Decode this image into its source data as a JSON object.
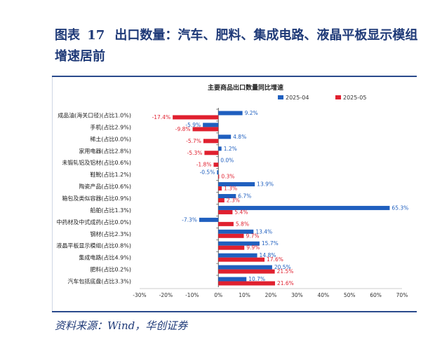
{
  "figure": {
    "label": "图表",
    "number": "17",
    "title": "出口数量：汽车、肥料、集成电路、液晶平板显示模组增速居前",
    "source": "资料来源：Wind，华创证券"
  },
  "colors": {
    "series_a": "#1f5fbf",
    "series_b": "#e0202f"
  },
  "chart_data": {
    "type": "bar",
    "orientation": "horizontal",
    "title": "主要商品出口数量同比增速",
    "categories": [
      "成品油(海关口径)(占比1.0%)",
      "手机(占比2.9%)",
      "稀土(占比0.0%)",
      "家用电器(占比2.8%)",
      "未锻轧铝及铝材(占比0.6%)",
      "鞋靴(占比1.2%)",
      "陶瓷产品(占比0.6%)",
      "箱包及类似容器(占比0.9%)",
      "船舶(占比1.3%)",
      "中药材及中式成药(占比0.0%)",
      "钢材(占比2.3%)",
      "液晶平板显示模组(占比0.8%)",
      "集成电路(占比4.9%)",
      "肥料(占比0.2%)",
      "汽车包括底盘(占比3.3%)"
    ],
    "series": [
      {
        "name": "2025-04",
        "values": [
          9.2,
          -5.9,
          4.8,
          1.2,
          0.0,
          -0.5,
          13.9,
          6.7,
          65.3,
          -7.3,
          13.4,
          15.7,
          14.8,
          20.5,
          10.7
        ]
      },
      {
        "name": "2025-05",
        "values": [
          -17.4,
          -9.8,
          -5.7,
          -5.3,
          -1.8,
          0.3,
          1.3,
          2.3,
          5.4,
          5.8,
          9.7,
          9.9,
          17.6,
          21.5,
          21.6
        ]
      }
    ],
    "xlim": [
      -30,
      70
    ],
    "xticks": [
      "-30%",
      "-20%",
      "-10%",
      "0%",
      "10%",
      "20%",
      "30%",
      "40%",
      "50%",
      "60%",
      "70%"
    ],
    "value_format": "percent",
    "legend_position": "top-right",
    "grid": false
  }
}
